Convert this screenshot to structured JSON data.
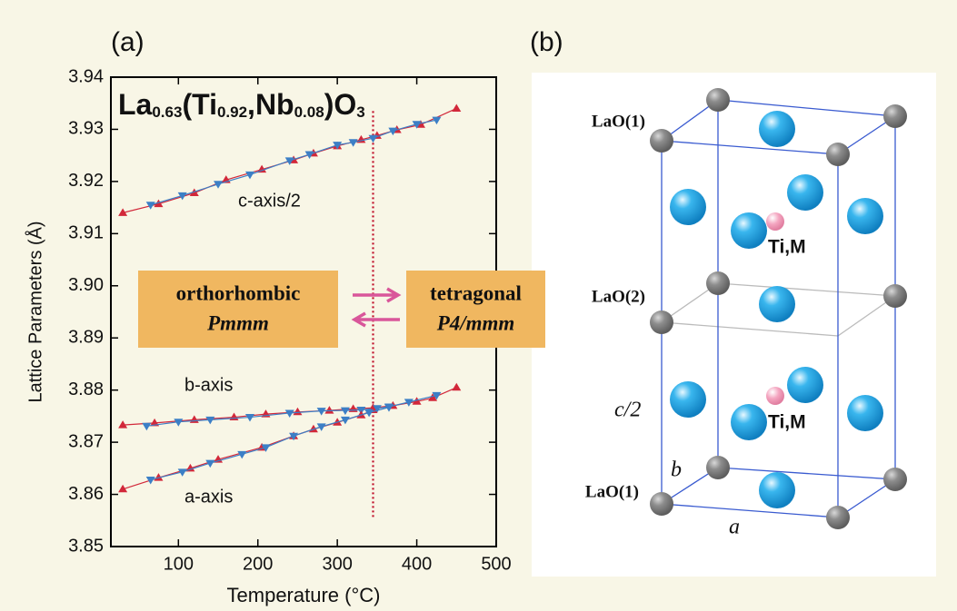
{
  "chart_data": {
    "type": "line",
    "panel_label": "(a)",
    "formula": [
      "La",
      "0.63",
      "(Ti",
      "0.92",
      ",Nb",
      "0.08",
      ")O",
      "3"
    ],
    "x_label": "Temperature (°C)",
    "y_label": "Lattice Parameters (Å)",
    "xlim": [
      15,
      500
    ],
    "ylim": [
      3.85,
      3.94
    ],
    "xticks": [
      100,
      200,
      300,
      400,
      500
    ],
    "yticks": [
      3.85,
      3.86,
      3.87,
      3.88,
      3.89,
      {
        "value": 3.9,
        "label": "3.90"
      },
      3.91,
      3.92,
      3.93,
      3.94
    ],
    "transition_x": 345,
    "annotations": [
      "c-axis/2",
      "b-axis",
      "a-axis"
    ],
    "phases": [
      {
        "name": "orthorhombic",
        "group": "Pmmm"
      },
      {
        "name": "tetragonal",
        "group": "P4/mmm"
      }
    ],
    "series": [
      {
        "color": "#d2283a",
        "marker": "up",
        "x": [
          30,
          75,
          120,
          160,
          205,
          245,
          270,
          300,
          330,
          350,
          375,
          405,
          450
        ],
        "values": [
          3.914,
          3.9157,
          3.9178,
          3.9203,
          3.9223,
          3.9241,
          3.9254,
          3.9268,
          3.928,
          3.9288,
          3.9299,
          3.9309,
          3.934
        ]
      },
      {
        "color": "#3c7fc6",
        "marker": "down",
        "x": [
          65,
          105,
          150,
          190,
          240,
          265,
          300,
          320,
          345,
          370,
          400,
          425
        ],
        "values": [
          3.9155,
          3.9173,
          3.9195,
          3.9213,
          3.924,
          3.9252,
          3.927,
          3.9275,
          3.9283,
          3.9297,
          3.931,
          3.9318
        ]
      },
      {
        "color": "#d2283a",
        "marker": "up",
        "x": [
          30,
          70,
          120,
          170,
          210,
          250,
          290,
          320,
          345,
          370,
          400,
          420,
          450
        ],
        "values": [
          3.8733,
          3.8737,
          3.8743,
          3.8748,
          3.8754,
          3.8758,
          3.8761,
          3.8764,
          3.8766,
          3.877,
          3.8778,
          3.8785,
          3.8805
        ]
      },
      {
        "color": "#3c7fc6",
        "marker": "down",
        "x": [
          60,
          100,
          140,
          190,
          240,
          280,
          310,
          330,
          350,
          365,
          390,
          425
        ],
        "values": [
          3.8731,
          3.8739,
          3.8743,
          3.8748,
          3.8756,
          3.876,
          3.8761,
          3.8762,
          3.8765,
          3.8768,
          3.8777,
          3.879
        ]
      },
      {
        "color": "#d2283a",
        "marker": "up",
        "x": [
          30,
          75,
          115,
          150,
          205,
          245,
          270,
          300,
          330,
          345
        ],
        "values": [
          3.861,
          3.8632,
          3.865,
          3.8667,
          3.869,
          3.8712,
          3.8725,
          3.8738,
          3.8752,
          3.8762
        ]
      },
      {
        "color": "#3c7fc6",
        "marker": "down",
        "x": [
          65,
          105,
          140,
          180,
          210,
          245,
          280,
          310,
          340,
          365
        ],
        "values": [
          3.8628,
          3.8643,
          3.866,
          3.8677,
          3.869,
          3.8712,
          3.873,
          3.8743,
          3.8757,
          3.8767
        ]
      }
    ]
  },
  "panel_b": {
    "label": "(b)",
    "layers": [
      "LaO(1)",
      "LaO(2)",
      "LaO(1)"
    ],
    "site": "Ti,M",
    "site2": "Ti,M",
    "c_label": "c/2",
    "b_label": "b",
    "a_label": "a"
  }
}
